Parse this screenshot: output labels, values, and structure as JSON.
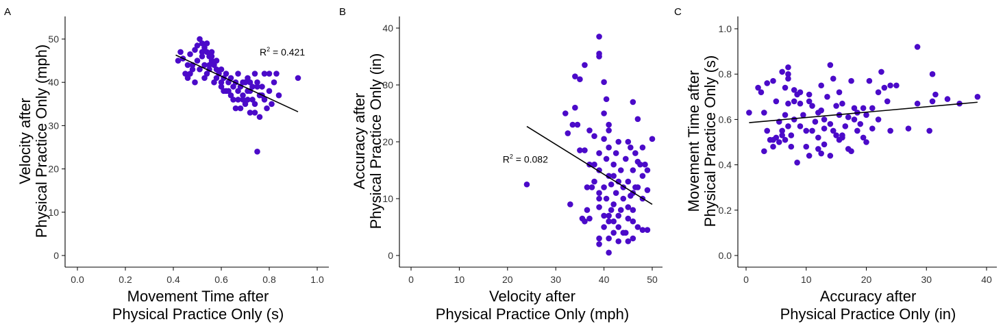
{
  "chart_data": [
    {
      "type": "scatter",
      "panel_label": "A",
      "xlabel": [
        "Movement Time after",
        "Physical Practice Only (s)"
      ],
      "ylabel": [
        "Velocity after",
        "Physical Practice Only (mph)"
      ],
      "xlim": [
        0,
        1.0
      ],
      "ylim": [
        0,
        50
      ],
      "xticks": [
        0.0,
        0.2,
        0.4,
        0.6,
        0.8,
        1.0
      ],
      "xtick_labels": [
        "0.0",
        "0.2",
        "0.4",
        "0.6",
        "0.8",
        "1.0"
      ],
      "yticks": [
        0,
        10,
        20,
        30,
        40,
        50
      ],
      "ytick_labels": [
        "0",
        "10",
        "20",
        "30",
        "40",
        "50"
      ],
      "annotation": {
        "text": "R",
        "sup": "2",
        "value": " = 0.421",
        "x": 0.76,
        "y": 46.2
      },
      "fit_line": {
        "x": [
          0.41,
          0.92
        ],
        "y": [
          46.3,
          33.2
        ]
      },
      "point_color": "#4B0AC9",
      "points": [
        [
          0.42,
          45
        ],
        [
          0.44,
          45.5
        ],
        [
          0.45,
          42
        ],
        [
          0.46,
          44
        ],
        [
          0.47,
          46.5
        ],
        [
          0.48,
          43
        ],
        [
          0.49,
          47.5
        ],
        [
          0.5,
          48.5
        ],
        [
          0.5,
          45
        ],
        [
          0.51,
          50
        ],
        [
          0.51,
          43
        ],
        [
          0.52,
          49
        ],
        [
          0.52,
          46
        ],
        [
          0.53,
          48
        ],
        [
          0.53,
          44
        ],
        [
          0.54,
          47
        ],
        [
          0.54,
          42
        ],
        [
          0.55,
          46
        ],
        [
          0.55,
          43
        ],
        [
          0.56,
          45
        ],
        [
          0.56,
          47
        ],
        [
          0.57,
          44
        ],
        [
          0.57,
          40
        ],
        [
          0.58,
          43
        ],
        [
          0.58,
          41
        ],
        [
          0.59,
          42
        ],
        [
          0.6,
          43
        ],
        [
          0.6,
          40
        ],
        [
          0.61,
          41
        ],
        [
          0.62,
          42
        ],
        [
          0.62,
          38
        ],
        [
          0.63,
          40
        ],
        [
          0.64,
          41
        ],
        [
          0.65,
          39
        ],
        [
          0.65,
          36
        ],
        [
          0.66,
          40
        ],
        [
          0.67,
          38
        ],
        [
          0.67,
          42
        ],
        [
          0.68,
          34
        ],
        [
          0.68,
          39
        ],
        [
          0.69,
          37
        ],
        [
          0.7,
          40
        ],
        [
          0.7,
          35
        ],
        [
          0.71,
          36
        ],
        [
          0.71,
          41
        ],
        [
          0.72,
          33
        ],
        [
          0.72,
          38
        ],
        [
          0.73,
          39
        ],
        [
          0.73,
          36
        ],
        [
          0.74,
          42
        ],
        [
          0.74,
          35
        ],
        [
          0.75,
          40
        ],
        [
          0.75,
          24
        ],
        [
          0.76,
          37
        ],
        [
          0.76,
          32
        ],
        [
          0.77,
          39
        ],
        [
          0.78,
          36
        ],
        [
          0.78,
          42
        ],
        [
          0.79,
          34
        ],
        [
          0.8,
          38
        ],
        [
          0.8,
          42
        ],
        [
          0.81,
          35
        ],
        [
          0.82,
          40
        ],
        [
          0.83,
          42
        ],
        [
          0.84,
          37
        ],
        [
          0.92,
          41
        ],
        [
          0.43,
          47
        ],
        [
          0.48,
          44
        ],
        [
          0.53,
          41
        ],
        [
          0.58,
          45
        ],
        [
          0.63,
          38
        ],
        [
          0.66,
          34
        ],
        [
          0.69,
          40
        ],
        [
          0.71,
          38
        ],
        [
          0.74,
          33
        ],
        [
          0.77,
          37
        ],
        [
          0.46,
          41
        ],
        [
          0.49,
          40
        ],
        [
          0.55,
          44
        ],
        [
          0.6,
          39
        ],
        [
          0.64,
          37
        ],
        [
          0.69,
          36
        ],
        [
          0.72,
          40
        ],
        [
          0.75,
          39
        ],
        [
          0.54,
          49
        ],
        [
          0.52,
          47
        ],
        [
          0.56,
          46
        ],
        [
          0.47,
          42
        ],
        [
          0.61,
          38
        ],
        [
          0.67,
          36
        ]
      ]
    },
    {
      "type": "scatter",
      "panel_label": "B",
      "xlabel": [
        "Velocity after",
        "Physical Practice Only (mph)"
      ],
      "ylabel": [
        "Accuracy after",
        "Physical Practice Only (in)"
      ],
      "xlim": [
        0,
        50
      ],
      "ylim": [
        0,
        40
      ],
      "xticks": [
        0,
        10,
        20,
        30,
        40,
        50
      ],
      "xtick_labels": [
        "0",
        "10",
        "20",
        "30",
        "40",
        "50"
      ],
      "yticks": [
        0,
        10,
        20,
        30,
        40
      ],
      "ytick_labels": [
        "0",
        "10",
        "20",
        "30",
        "40"
      ],
      "annotation": {
        "text": "R",
        "sup": "2",
        "value": " = 0.082",
        "x": 19,
        "y": 16.3
      },
      "fit_line": {
        "x": [
          24,
          50
        ],
        "y": [
          22.7,
          9.0
        ]
      },
      "point_color": "#4B0AC9",
      "points": [
        [
          24,
          12.5
        ],
        [
          32,
          25
        ],
        [
          32.5,
          21.5
        ],
        [
          33,
          9
        ],
        [
          33.5,
          23
        ],
        [
          34,
          31.5
        ],
        [
          34,
          26
        ],
        [
          34.5,
          23
        ],
        [
          35,
          31
        ],
        [
          35,
          18.5
        ],
        [
          35.5,
          6.5
        ],
        [
          36,
          33.5
        ],
        [
          36,
          18.5
        ],
        [
          36,
          6
        ],
        [
          36.5,
          12
        ],
        [
          36.5,
          8
        ],
        [
          37,
          16
        ],
        [
          37,
          22
        ],
        [
          37,
          6.5
        ],
        [
          38,
          21
        ],
        [
          38,
          13
        ],
        [
          38,
          16
        ],
        [
          39,
          38.5
        ],
        [
          39,
          35
        ],
        [
          39,
          35.5
        ],
        [
          39,
          18
        ],
        [
          39,
          15
        ],
        [
          39,
          8.5
        ],
        [
          39,
          3
        ],
        [
          39,
          2
        ],
        [
          39,
          10
        ],
        [
          39,
          11
        ],
        [
          40,
          30.5
        ],
        [
          40,
          20.5
        ],
        [
          40,
          12
        ],
        [
          40,
          7
        ],
        [
          40,
          5
        ],
        [
          40,
          25
        ],
        [
          40.5,
          27.5
        ],
        [
          40.5,
          17
        ],
        [
          40.5,
          10
        ],
        [
          41,
          23
        ],
        [
          41,
          19
        ],
        [
          41,
          14
        ],
        [
          41,
          7
        ],
        [
          41,
          6
        ],
        [
          41,
          0.5
        ],
        [
          41,
          3
        ],
        [
          41,
          22
        ],
        [
          41.5,
          12.5
        ],
        [
          41.5,
          8
        ],
        [
          42,
          16
        ],
        [
          42,
          14
        ],
        [
          42,
          9
        ],
        [
          42,
          6
        ],
        [
          42,
          4
        ],
        [
          42.5,
          18
        ],
        [
          42.5,
          11
        ],
        [
          43,
          20
        ],
        [
          43,
          13
        ],
        [
          43,
          7
        ],
        [
          43,
          5
        ],
        [
          43,
          2.5
        ],
        [
          43.5,
          15
        ],
        [
          44,
          12
        ],
        [
          44,
          10
        ],
        [
          44,
          4
        ],
        [
          44.5,
          17
        ],
        [
          45,
          20
        ],
        [
          45,
          13
        ],
        [
          45,
          8.5
        ],
        [
          45,
          6.5
        ],
        [
          45,
          2.5
        ],
        [
          45.5,
          19
        ],
        [
          45.5,
          10.5
        ],
        [
          46,
          27
        ],
        [
          46,
          15
        ],
        [
          46,
          11
        ],
        [
          46,
          8
        ],
        [
          46,
          6
        ],
        [
          46,
          3
        ],
        [
          46.5,
          18
        ],
        [
          46.5,
          12
        ],
        [
          47,
          24
        ],
        [
          47,
          16.5
        ],
        [
          47,
          12
        ],
        [
          47,
          5
        ],
        [
          47.5,
          16
        ],
        [
          48,
          19
        ],
        [
          48,
          14
        ],
        [
          48,
          10
        ],
        [
          48,
          4.5
        ],
        [
          48.5,
          16
        ],
        [
          49,
          15
        ],
        [
          49,
          11.5
        ],
        [
          49,
          4.5
        ],
        [
          50,
          20.5
        ],
        [
          37.5,
          12
        ],
        [
          43.5,
          8
        ],
        [
          44.5,
          4
        ]
      ]
    },
    {
      "type": "scatter",
      "panel_label": "C",
      "xlabel": [
        "Accuracy after",
        "Physical Practice Only (in)"
      ],
      "ylabel": [
        "Movement Time after",
        "Physical Practice Only (s)"
      ],
      "xlim": [
        0,
        40
      ],
      "ylim": [
        0,
        1.0
      ],
      "xticks": [
        0,
        10,
        20,
        30,
        40
      ],
      "xtick_labels": [
        "0",
        "10",
        "20",
        "30",
        "40"
      ],
      "yticks": [
        0.0,
        0.2,
        0.4,
        0.6,
        0.8,
        1.0
      ],
      "ytick_labels": [
        "0.0",
        "0.2",
        "0.4",
        "0.6",
        "0.8",
        "1.0"
      ],
      "fit_line": {
        "x": [
          0.5,
          38.5
        ],
        "y": [
          0.586,
          0.676
        ]
      },
      "point_color": "#4B0AC9",
      "points": [
        [
          0.5,
          0.63
        ],
        [
          2,
          0.74
        ],
        [
          2.5,
          0.72
        ],
        [
          3,
          0.46
        ],
        [
          3,
          0.63
        ],
        [
          3.5,
          0.76
        ],
        [
          3.5,
          0.55
        ],
        [
          4,
          0.51
        ],
        [
          4.5,
          0.77
        ],
        [
          4.5,
          0.48
        ],
        [
          5,
          0.68
        ],
        [
          5,
          0.52
        ],
        [
          5.5,
          0.59
        ],
        [
          5.5,
          0.5
        ],
        [
          6,
          0.81
        ],
        [
          6,
          0.55
        ],
        [
          6,
          0.53
        ],
        [
          6.5,
          0.74
        ],
        [
          6.5,
          0.62
        ],
        [
          6.5,
          0.51
        ],
        [
          7,
          0.83
        ],
        [
          7,
          0.8
        ],
        [
          7,
          0.78
        ],
        [
          7,
          0.67
        ],
        [
          7,
          0.57
        ],
        [
          7.5,
          0.53
        ],
        [
          7.5,
          0.48
        ],
        [
          8,
          0.73
        ],
        [
          8,
          0.68
        ],
        [
          8,
          0.6
        ],
        [
          8.5,
          0.41
        ],
        [
          8.5,
          0.71
        ],
        [
          9,
          0.72
        ],
        [
          9,
          0.57
        ],
        [
          9.5,
          0.62
        ],
        [
          10,
          0.55
        ],
        [
          10,
          0.48
        ],
        [
          10.5,
          0.71
        ],
        [
          10.5,
          0.68
        ],
        [
          10.5,
          0.44
        ],
        [
          11,
          0.66
        ],
        [
          11,
          0.55
        ],
        [
          11.5,
          0.59
        ],
        [
          12,
          0.63
        ],
        [
          12,
          0.52
        ],
        [
          12,
          0.47
        ],
        [
          12.5,
          0.75
        ],
        [
          12.5,
          0.64
        ],
        [
          13,
          0.6
        ],
        [
          13,
          0.56
        ],
        [
          13,
          0.49
        ],
        [
          13.5,
          0.7
        ],
        [
          14,
          0.84
        ],
        [
          14,
          0.58
        ],
        [
          14,
          0.44
        ],
        [
          14.5,
          0.78
        ],
        [
          14.5,
          0.55
        ],
        [
          15,
          0.66
        ],
        [
          15,
          0.53
        ],
        [
          15.5,
          0.72
        ],
        [
          15.5,
          0.62
        ],
        [
          15.5,
          0.51
        ],
        [
          16,
          0.67
        ],
        [
          16,
          0.52
        ],
        [
          16.5,
          0.57
        ],
        [
          17,
          0.61
        ],
        [
          17,
          0.47
        ],
        [
          17.5,
          0.77
        ],
        [
          17.5,
          0.46
        ],
        [
          18,
          0.65
        ],
        [
          18,
          0.6
        ],
        [
          18.5,
          0.63
        ],
        [
          18.5,
          0.55
        ],
        [
          19,
          0.58
        ],
        [
          19.5,
          0.65
        ],
        [
          19.5,
          0.52
        ],
        [
          20,
          0.62
        ],
        [
          20,
          0.5
        ],
        [
          20.5,
          0.77
        ],
        [
          21,
          0.65
        ],
        [
          21,
          0.56
        ],
        [
          22,
          0.72
        ],
        [
          22,
          0.6
        ],
        [
          22.5,
          0.81
        ],
        [
          23,
          0.74
        ],
        [
          23.5,
          0.68
        ],
        [
          24,
          0.55
        ],
        [
          24,
          0.75
        ],
        [
          25,
          0.75
        ],
        [
          27,
          0.56
        ],
        [
          28.5,
          0.92
        ],
        [
          28.5,
          0.67
        ],
        [
          30.5,
          0.55
        ],
        [
          31,
          0.8
        ],
        [
          31,
          0.68
        ],
        [
          31.5,
          0.71
        ],
        [
          33.5,
          0.69
        ],
        [
          35.5,
          0.67
        ],
        [
          38.5,
          0.7
        ],
        [
          4.5,
          0.51
        ],
        [
          9,
          0.67
        ],
        [
          16,
          0.53
        ],
        [
          12.5,
          0.45
        ]
      ]
    }
  ]
}
